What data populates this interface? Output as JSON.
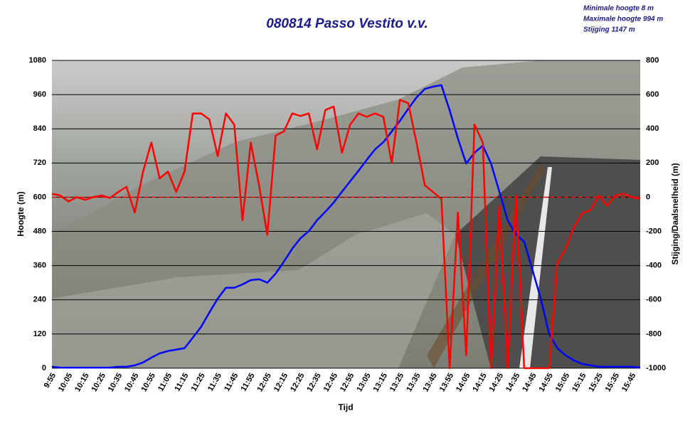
{
  "chart_data": {
    "type": "line",
    "title": "080814 Passo Vestito v.v.",
    "annotations": [
      "Minimale hoogte 8 m",
      "Maximale hoogte 994 m",
      "Stijging 1147 m"
    ],
    "x_label": "Tijd",
    "y_label": "Hoogte (m)",
    "y2_label": "Stijging/Daalsnelheid (m)",
    "categories": [
      "9:55",
      null,
      "10:05",
      null,
      "10:15",
      null,
      "10:25",
      null,
      "10:35",
      null,
      "10:45",
      null,
      "10:55",
      null,
      "11:05",
      null,
      "11:15",
      null,
      "11:25",
      null,
      "11:35",
      null,
      "11:45",
      null,
      "11:55",
      null,
      "12:05",
      null,
      "12:15",
      null,
      "12:25",
      null,
      "12:35",
      null,
      "12:45",
      null,
      "12:55",
      null,
      "13:05",
      null,
      "13:15",
      null,
      "13:25",
      null,
      "13:35",
      null,
      "13:45",
      null,
      "13:55",
      null,
      "14:05",
      null,
      "14:15",
      null,
      "14:25",
      null,
      "14:35",
      null,
      "14:45",
      null,
      "14:55",
      null,
      "15:05",
      null,
      "15:15",
      null,
      "15:25",
      null,
      "15:35",
      null,
      "15:45",
      null
    ],
    "series": [
      {
        "color": "#0000ff",
        "values": [
          5,
          2,
          2,
          2,
          2,
          2,
          2,
          2,
          5,
          5,
          10,
          20,
          37,
          52,
          60,
          65,
          70,
          107,
          145,
          195,
          244,
          282,
          282,
          294,
          309,
          312,
          300,
          332,
          374,
          419,
          456,
          481,
          519,
          549,
          581,
          619,
          656,
          693,
          731,
          768,
          793,
          830,
          868,
          910,
          950,
          980,
          988,
          993,
          905,
          806,
          718,
          756,
          781,
          718,
          619,
          519,
          469,
          444,
          344,
          244,
          120,
          70,
          45,
          27,
          15,
          10,
          5,
          5,
          5,
          5,
          5,
          2
        ]
      },
      {
        "color": "#ff0000",
        "axis": "y2",
        "values": [
          20,
          10,
          -25,
          0,
          -15,
          0,
          10,
          -5,
          30,
          60,
          -90,
          150,
          320,
          110,
          150,
          30,
          150,
          490,
          490,
          455,
          240,
          490,
          425,
          -135,
          320,
          70,
          -220,
          360,
          385,
          490,
          475,
          490,
          280,
          510,
          530,
          260,
          425,
          490,
          470,
          490,
          470,
          200,
          570,
          550,
          320,
          70,
          30,
          -10,
          -1000,
          -90,
          -925,
          425,
          320,
          -1000,
          -50,
          -1000,
          10,
          -1000,
          -1000,
          -1000,
          -1000,
          -385,
          -300,
          -175,
          -95,
          -75,
          10,
          -50,
          10,
          20,
          0,
          -10
        ]
      }
    ],
    "ylim": [
      0,
      1080
    ],
    "yticks": [
      0,
      120,
      240,
      360,
      480,
      600,
      720,
      840,
      960,
      1080
    ],
    "y2lim": [
      -1000,
      800
    ],
    "y2ticks": [
      -1000,
      -800,
      -600,
      -400,
      -200,
      0,
      200,
      400,
      600,
      800
    ],
    "grid": true
  }
}
